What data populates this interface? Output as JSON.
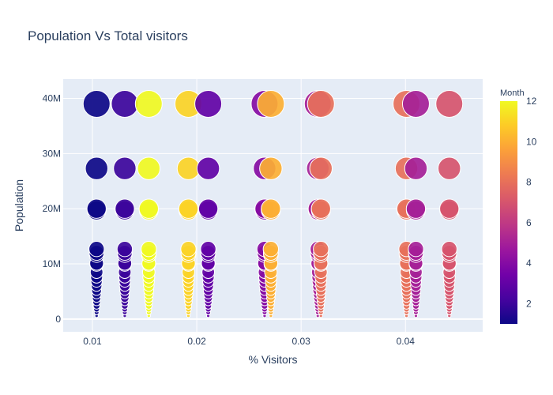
{
  "chart_data": {
    "type": "scatter",
    "title": "Population Vs  Total visitors",
    "xlabel": "% Visitors",
    "ylabel": "Population",
    "xlim": [
      0.0072,
      0.0474
    ],
    "ylim": [
      -2300000,
      43500000
    ],
    "x_ticks": [
      {
        "value": 0.01,
        "label": "0.01"
      },
      {
        "value": 0.02,
        "label": "0.02"
      },
      {
        "value": 0.03,
        "label": "0.03"
      },
      {
        "value": 0.04,
        "label": "0.04"
      }
    ],
    "y_ticks": [
      {
        "value": 0,
        "label": "0"
      },
      {
        "value": 10000000,
        "label": "10M"
      },
      {
        "value": 20000000,
        "label": "20M"
      },
      {
        "value": 30000000,
        "label": "30M"
      },
      {
        "value": 40000000,
        "label": "40M"
      }
    ],
    "color_axis": {
      "title": "Month",
      "range": [
        1,
        12
      ],
      "ticks": [
        2,
        4,
        6,
        8,
        10,
        12
      ],
      "colorscale": [
        "#0d0887",
        "#46039f",
        "#7201a8",
        "#9c179e",
        "#bd3786",
        "#d8576b",
        "#ed7953",
        "#fb9f3a",
        "#fdca26",
        "#f0f921"
      ]
    },
    "grid": true,
    "legend": "none",
    "populations": [
      39000000,
      27300000,
      20000000,
      19700000,
      12700000,
      12000000,
      11600000,
      10100000,
      9900000,
      8500000,
      7600000,
      6800000,
      6000000,
      5200000,
      4500000,
      3800000,
      3100000,
      2400000,
      1800000,
      1200000,
      600000
    ],
    "columns": [
      {
        "x": 0.0104,
        "month": 1
      },
      {
        "x": 0.0131,
        "month": 2
      },
      {
        "x": 0.0154,
        "month": 12
      },
      {
        "x": 0.0192,
        "month": 11
      },
      {
        "x": 0.0211,
        "month": 3
      },
      {
        "x": 0.0265,
        "month": 4
      },
      {
        "x": 0.0271,
        "month": 10
      },
      {
        "x": 0.0316,
        "month": 5
      },
      {
        "x": 0.0319,
        "month": 8
      },
      {
        "x": 0.0401,
        "month": 8
      },
      {
        "x": 0.041,
        "month": 5
      },
      {
        "x": 0.0442,
        "month": 7
      }
    ]
  }
}
